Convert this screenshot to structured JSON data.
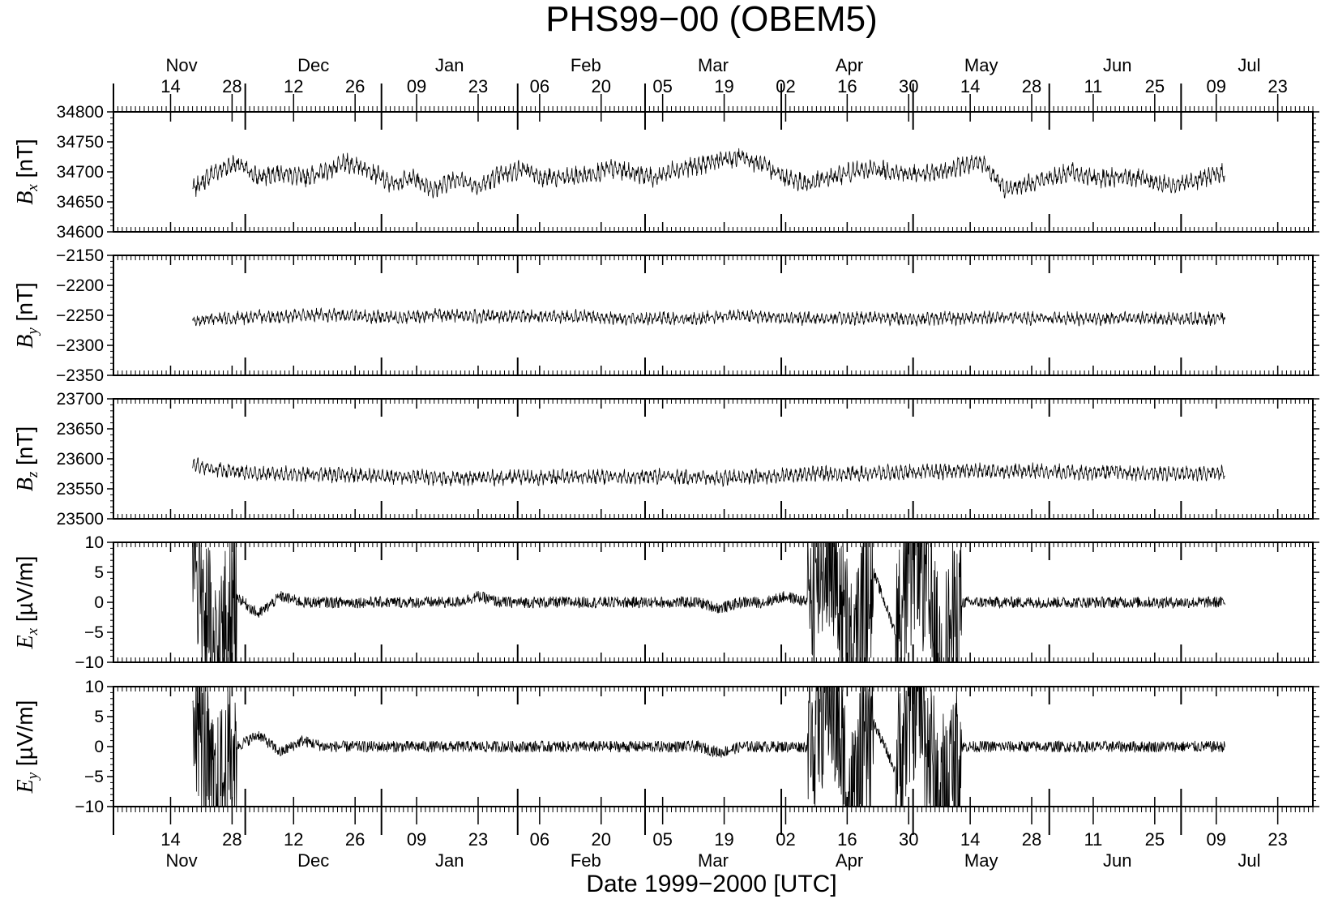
{
  "chart_data": {
    "type": "line",
    "title": "PHS99−00 (OBEM5)",
    "xlabel": "Date 1999−2000 [UTC]",
    "x_range": [
      "1999-11-01",
      "2000-07-31"
    ],
    "month_labels": [
      "Nov",
      "Dec",
      "Jan",
      "Feb",
      "Mar",
      "Apr",
      "May",
      "Jun",
      "Jul"
    ],
    "month_starts": [
      "1999-11-01",
      "1999-12-01",
      "2000-01-01",
      "2000-02-01",
      "2000-03-01",
      "2000-04-01",
      "2000-05-01",
      "2000-06-01",
      "2000-07-01"
    ],
    "day_ticks": [
      "1999-11-14",
      "1999-11-28",
      "1999-12-12",
      "1999-12-26",
      "2000-01-09",
      "2000-01-23",
      "2000-02-06",
      "2000-02-20",
      "2000-03-05",
      "2000-03-19",
      "2000-04-02",
      "2000-04-16",
      "2000-04-30",
      "2000-05-14",
      "2000-05-28",
      "2000-06-11",
      "2000-06-25",
      "2000-07-09",
      "2000-07-23"
    ],
    "day_tick_labels": [
      "14",
      "28",
      "12",
      "26",
      "09",
      "23",
      "06",
      "20",
      "05",
      "19",
      "02",
      "16",
      "30",
      "14",
      "28",
      "11",
      "25",
      "09",
      "23"
    ],
    "grid": false,
    "panels": [
      {
        "id": "bx",
        "label_main": "B",
        "label_sub": "x",
        "label_unit": " [nT]",
        "ylim": [
          34600,
          34800
        ],
        "yticks": [
          34600,
          34650,
          34700,
          34750,
          34800
        ],
        "ytick_labels": [
          "34600",
          "34650",
          "34700",
          "34750",
          "34800"
        ],
        "series": [
          {
            "x": [
              "1999-11-19",
              "1999-11-24",
              "1999-11-29",
              "1999-12-04",
              "1999-12-09",
              "1999-12-14",
              "1999-12-19",
              "1999-12-24",
              "1999-12-29",
              "2000-01-03",
              "2000-01-08",
              "2000-01-13",
              "2000-01-18",
              "2000-01-23",
              "2000-01-28",
              "2000-02-02",
              "2000-02-07",
              "2000-02-12",
              "2000-02-17",
              "2000-02-22",
              "2000-02-27",
              "2000-03-03",
              "2000-03-08",
              "2000-03-13",
              "2000-03-18",
              "2000-03-23",
              "2000-03-28",
              "2000-04-02",
              "2000-04-07",
              "2000-04-12",
              "2000-04-17",
              "2000-04-22",
              "2000-04-27",
              "2000-05-02",
              "2000-05-07",
              "2000-05-12",
              "2000-05-17",
              "2000-05-22",
              "2000-05-27",
              "2000-06-01",
              "2000-06-06",
              "2000-06-11",
              "2000-06-16",
              "2000-06-21",
              "2000-06-26",
              "2000-07-01",
              "2000-07-06",
              "2000-07-11"
            ],
            "y": [
              34670,
              34700,
              34715,
              34690,
              34700,
              34690,
              34700,
              34715,
              34705,
              34680,
              34690,
              34670,
              34690,
              34675,
              34695,
              34705,
              34690,
              34690,
              34695,
              34705,
              34700,
              34690,
              34705,
              34710,
              34720,
              34725,
              34710,
              34690,
              34680,
              34690,
              34700,
              34705,
              34700,
              34695,
              34700,
              34710,
              34715,
              34670,
              34680,
              34690,
              34700,
              34690,
              34690,
              34690,
              34680,
              34680,
              34690,
              34700
            ]
          }
        ]
      },
      {
        "id": "by",
        "label_main": "B",
        "label_sub": "y",
        "label_unit": " [nT]",
        "ylim": [
          -2350,
          -2150
        ],
        "yticks": [
          -2350,
          -2300,
          -2250,
          -2200,
          -2150
        ],
        "ytick_labels": [
          "−2350",
          "−2300",
          "−2250",
          "−2200",
          "−2150"
        ],
        "series": [
          {
            "x": [
              "1999-11-19",
              "1999-11-24",
              "1999-11-29",
              "1999-12-04",
              "1999-12-09",
              "1999-12-14",
              "1999-12-19",
              "1999-12-24",
              "1999-12-29",
              "2000-01-03",
              "2000-01-08",
              "2000-01-13",
              "2000-01-18",
              "2000-01-23",
              "2000-01-28",
              "2000-02-02",
              "2000-02-07",
              "2000-02-12",
              "2000-02-17",
              "2000-02-22",
              "2000-02-27",
              "2000-03-03",
              "2000-03-08",
              "2000-03-13",
              "2000-03-18",
              "2000-03-23",
              "2000-03-28",
              "2000-04-02",
              "2000-04-07",
              "2000-04-12",
              "2000-04-17",
              "2000-04-22",
              "2000-04-27",
              "2000-05-02",
              "2000-05-07",
              "2000-05-12",
              "2000-05-17",
              "2000-05-22",
              "2000-05-27",
              "2000-06-01",
              "2000-06-06",
              "2000-06-11",
              "2000-06-16",
              "2000-06-21",
              "2000-06-26",
              "2000-07-01",
              "2000-07-06",
              "2000-07-11"
            ],
            "y": [
              -2260,
              -2255,
              -2255,
              -2252,
              -2252,
              -2250,
              -2250,
              -2250,
              -2252,
              -2253,
              -2252,
              -2250,
              -2250,
              -2252,
              -2252,
              -2250,
              -2252,
              -2252,
              -2252,
              -2255,
              -2255,
              -2255,
              -2255,
              -2255,
              -2252,
              -2250,
              -2252,
              -2255,
              -2255,
              -2255,
              -2255,
              -2253,
              -2255,
              -2256,
              -2255,
              -2255,
              -2253,
              -2253,
              -2255,
              -2255,
              -2255,
              -2256,
              -2255,
              -2255,
              -2255,
              -2255,
              -2256,
              -2255
            ]
          }
        ]
      },
      {
        "id": "bz",
        "label_main": "B",
        "label_sub": "z",
        "label_unit": " [nT]",
        "ylim": [
          23500,
          23700
        ],
        "yticks": [
          23500,
          23550,
          23600,
          23650,
          23700
        ],
        "ytick_labels": [
          "23500",
          "23550",
          "23600",
          "23650",
          "23700"
        ],
        "series": [
          {
            "x": [
              "1999-11-19",
              "1999-11-24",
              "1999-11-29",
              "1999-12-04",
              "1999-12-09",
              "1999-12-14",
              "1999-12-19",
              "1999-12-24",
              "1999-12-29",
              "2000-01-03",
              "2000-01-08",
              "2000-01-13",
              "2000-01-18",
              "2000-01-23",
              "2000-01-28",
              "2000-02-02",
              "2000-02-07",
              "2000-02-12",
              "2000-02-17",
              "2000-02-22",
              "2000-02-27",
              "2000-03-03",
              "2000-03-08",
              "2000-03-13",
              "2000-03-18",
              "2000-03-23",
              "2000-03-28",
              "2000-04-02",
              "2000-04-07",
              "2000-04-12",
              "2000-04-17",
              "2000-04-22",
              "2000-04-27",
              "2000-05-02",
              "2000-05-07",
              "2000-05-12",
              "2000-05-17",
              "2000-05-22",
              "2000-05-27",
              "2000-06-01",
              "2000-06-06",
              "2000-06-11",
              "2000-06-16",
              "2000-06-21",
              "2000-06-26",
              "2000-07-01",
              "2000-07-06",
              "2000-07-11"
            ],
            "y": [
              23590,
              23583,
              23578,
              23575,
              23575,
              23574,
              23573,
              23573,
              23572,
              23570,
              23570,
              23569,
              23568,
              23568,
              23569,
              23569,
              23569,
              23570,
              23570,
              23570,
              23570,
              23571,
              23570,
              23569,
              23568,
              23569,
              23570,
              23572,
              23576,
              23575,
              23576,
              23576,
              23577,
              23578,
              23578,
              23580,
              23580,
              23580,
              23580,
              23579,
              23578,
              23578,
              23578,
              23576,
              23576,
              23576,
              23576,
              23576
            ]
          }
        ]
      },
      {
        "id": "ex",
        "label_main": "E",
        "label_sub": "x",
        "label_unit": " [µV/m]",
        "ylim": [
          -10,
          10
        ],
        "yticks": [
          -10,
          -5,
          0,
          5,
          10
        ],
        "ytick_labels": [
          "−10",
          "−5",
          "0",
          "5",
          "10"
        ],
        "series": [
          {
            "x": [
              "1999-11-19",
              "1999-11-24",
              "1999-11-29",
              "1999-12-04",
              "1999-12-09",
              "1999-12-14",
              "1999-12-19",
              "1999-12-24",
              "1999-12-29",
              "2000-01-03",
              "2000-01-08",
              "2000-01-13",
              "2000-01-18",
              "2000-01-23",
              "2000-01-28",
              "2000-02-02",
              "2000-02-07",
              "2000-02-12",
              "2000-02-17",
              "2000-02-22",
              "2000-02-27",
              "2000-03-03",
              "2000-03-08",
              "2000-03-13",
              "2000-03-18",
              "2000-03-23",
              "2000-03-28",
              "2000-04-02",
              "2000-04-07",
              "2000-04-12",
              "2000-04-17",
              "2000-04-22",
              "2000-04-27",
              "2000-05-02",
              "2000-05-07",
              "2000-05-12",
              "2000-05-17",
              "2000-05-22",
              "2000-05-27",
              "2000-06-01",
              "2000-06-06",
              "2000-06-11",
              "2000-06-16",
              "2000-06-21",
              "2000-06-26",
              "2000-07-01",
              "2000-07-06",
              "2000-07-11"
            ],
            "y": [
              10,
              -10,
              1,
              -2,
              1,
              0,
              0,
              0,
              0,
              0,
              0,
              0,
              0,
              1,
              0,
              0,
              0,
              0,
              0,
              0,
              0,
              0,
              0,
              0,
              -1,
              0,
              0,
              1,
              0,
              10,
              -10,
              5,
              -5,
              10,
              -10,
              0,
              0,
              0,
              0,
              0,
              0,
              0,
              0,
              0,
              0,
              0,
              0,
              0
            ]
          }
        ]
      },
      {
        "id": "ey",
        "label_main": "E",
        "label_sub": "y",
        "label_unit": " [µV/m]",
        "ylim": [
          -10,
          10
        ],
        "yticks": [
          -10,
          -5,
          0,
          5,
          10
        ],
        "ytick_labels": [
          "−10",
          "−5",
          "0",
          "5",
          "10"
        ],
        "series": [
          {
            "x": [
              "1999-11-19",
              "1999-11-24",
              "1999-11-29",
              "1999-12-04",
              "1999-12-09",
              "1999-12-14",
              "1999-12-19",
              "1999-12-24",
              "1999-12-29",
              "2000-01-03",
              "2000-01-08",
              "2000-01-13",
              "2000-01-18",
              "2000-01-23",
              "2000-01-28",
              "2000-02-02",
              "2000-02-07",
              "2000-02-12",
              "2000-02-17",
              "2000-02-22",
              "2000-02-27",
              "2000-03-03",
              "2000-03-08",
              "2000-03-13",
              "2000-03-18",
              "2000-03-23",
              "2000-03-28",
              "2000-04-02",
              "2000-04-07",
              "2000-04-12",
              "2000-04-17",
              "2000-04-22",
              "2000-04-27",
              "2000-05-02",
              "2000-05-07",
              "2000-05-12",
              "2000-05-17",
              "2000-05-22",
              "2000-05-27",
              "2000-06-01",
              "2000-06-06",
              "2000-06-11",
              "2000-06-16",
              "2000-06-21",
              "2000-06-26",
              "2000-07-01",
              "2000-07-06",
              "2000-07-11"
            ],
            "y": [
              10,
              -10,
              0,
              2,
              -1,
              1,
              0,
              0,
              0,
              0,
              0,
              0,
              0,
              0,
              0,
              0,
              0,
              0,
              0,
              0,
              0,
              0,
              0,
              0,
              -1,
              0,
              0,
              0,
              0,
              10,
              -10,
              4,
              -4,
              10,
              -10,
              0,
              0,
              0,
              0,
              0,
              0,
              0,
              0,
              0,
              0,
              0,
              0,
              0
            ]
          }
        ]
      }
    ]
  }
}
